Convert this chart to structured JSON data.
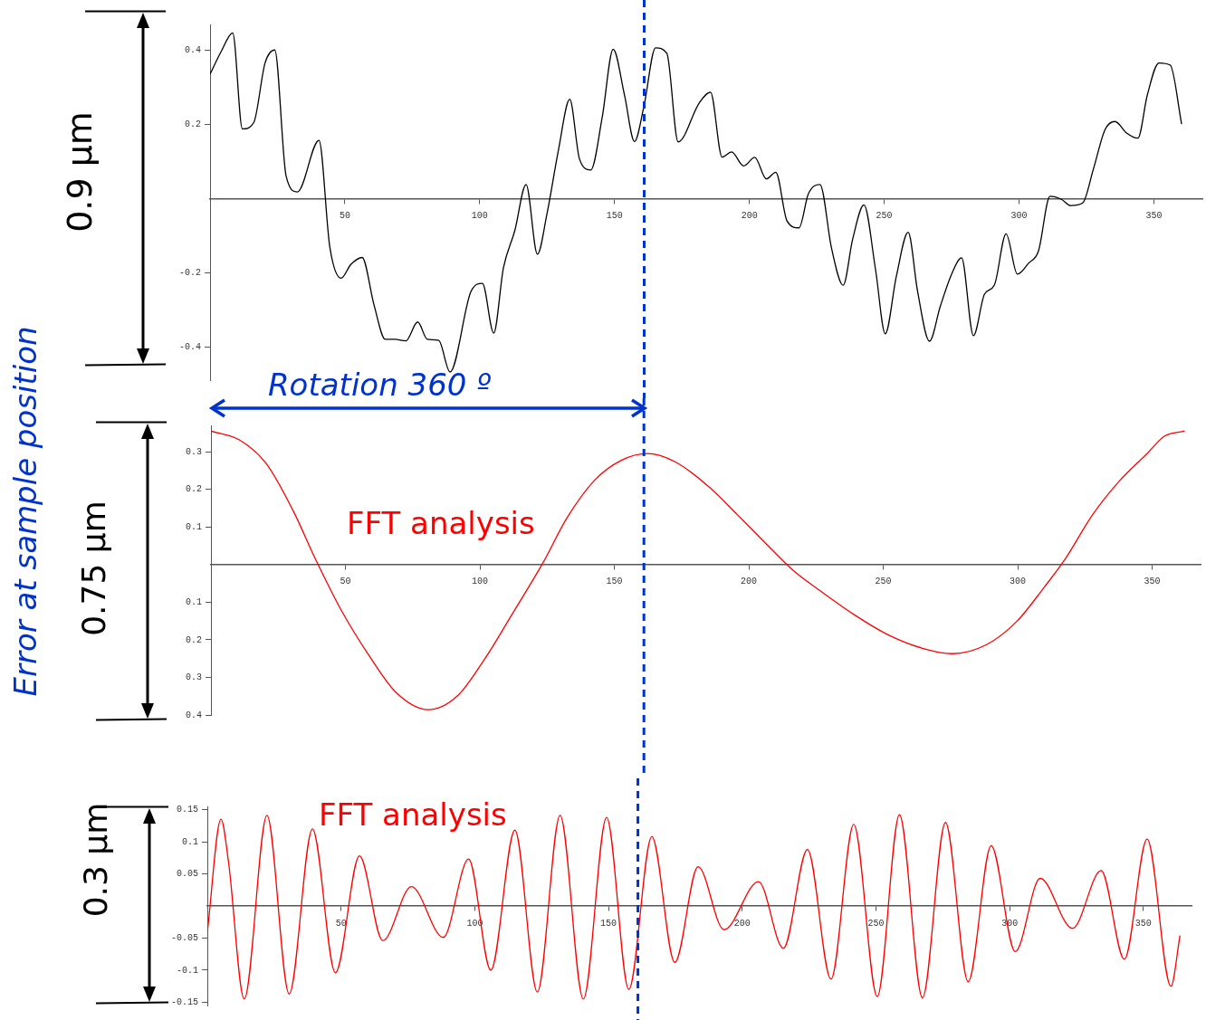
{
  "chart_data": [
    {
      "type": "line",
      "ylabel": "Error at sample position",
      "annotations": [
        "0.9 µm",
        "Rotation 360 º"
      ],
      "marker": "none",
      "xlim": [
        0,
        368
      ],
      "xticks": [
        50,
        100,
        150,
        200,
        250,
        300,
        350
      ],
      "ylim": [
        -0.49,
        0.47
      ],
      "yticks": [
        {
          "value": 0.4,
          "label": "0.4"
        },
        {
          "value": 0.2,
          "label": "0.2"
        },
        {
          "value": -0.2,
          "label": "-0.2"
        },
        {
          "value": -0.4,
          "label": "-0.4"
        }
      ],
      "ref_lines": [
        {
          "axis": "x",
          "value": 161,
          "label": null,
          "color": "#0033cc",
          "line_style": "dashed"
        }
      ],
      "x": [
        0,
        4.2,
        8.4,
        12,
        16.2,
        20.4,
        24,
        28.2,
        32.4,
        40.4,
        44.4,
        48.6,
        52.2,
        56.4,
        60.8,
        65,
        68.6,
        72.6,
        77,
        80.6,
        84.8,
        89,
        96.8,
        101,
        105.2,
        108.8,
        113,
        117.2,
        121.4,
        125,
        129.2,
        133.4,
        137,
        141.2,
        145.4,
        149.5,
        153.7,
        157.4,
        160.9,
        165.2,
        169.4,
        173.6,
        181.4,
        185.6,
        189.9,
        193.4,
        197.9,
        202,
        206.3,
        209.8,
        214,
        218.4,
        221.9,
        226.2,
        230.5,
        234.8,
        238.3,
        242.5,
        246.8,
        250.4,
        254.5,
        258.9,
        262.4,
        266.8,
        270.8,
        275,
        278.7,
        283.1,
        287.2,
        290.9,
        295.2,
        299.4,
        303.6,
        307.2,
        311.5,
        315.7,
        319.2,
        323.6,
        327.6,
        331.9,
        335.6,
        339.9,
        344.1,
        347.6,
        351.9,
        356.1,
        360.3
      ],
      "series": [
        {
          "color": "#000000",
          "values": [
            0.336,
            0.398,
            0.447,
            0.188,
            0.205,
            0.366,
            0.401,
            0.061,
            0.018,
            0.157,
            -0.13,
            -0.215,
            -0.178,
            -0.159,
            -0.287,
            -0.38,
            -0.38,
            -0.384,
            -0.333,
            -0.38,
            -0.383,
            -0.468,
            -0.25,
            -0.229,
            -0.363,
            -0.187,
            -0.087,
            0.038,
            -0.15,
            -0.039,
            0.131,
            0.268,
            0.107,
            0.077,
            0.218,
            0.403,
            0.279,
            0.154,
            0.249,
            0.407,
            0.392,
            0.153,
            0.258,
            0.287,
            0.112,
            0.126,
            0.088,
            0.111,
            0.053,
            0.071,
            -0.061,
            -0.079,
            0.013,
            0.038,
            -0.135,
            -0.234,
            -0.11,
            -0.017,
            -0.192,
            -0.365,
            -0.21,
            -0.091,
            -0.251,
            -0.385,
            -0.291,
            -0.204,
            -0.16,
            -0.37,
            -0.258,
            -0.233,
            -0.095,
            -0.204,
            -0.174,
            -0.142,
            0.006,
            -0.002,
            -0.019,
            -0.012,
            0.08,
            0.186,
            0.208,
            0.177,
            0.163,
            0.28,
            0.366,
            0.36,
            0.201
          ]
        }
      ]
    },
    {
      "type": "line",
      "annotations": [
        "0.75 µm",
        "FFT analysis"
      ],
      "marker": "none",
      "xlim": [
        0,
        368
      ],
      "xticks": [
        50,
        100,
        150,
        200,
        250,
        300,
        350
      ],
      "ylim": [
        -0.4,
        0.37
      ],
      "yticks": [
        {
          "value": 0.3,
          "label": "0.3"
        },
        {
          "value": 0.2,
          "label": "0.2"
        },
        {
          "value": 0.1,
          "label": "0.1"
        },
        {
          "value": -0.1,
          "label": "0.1"
        },
        {
          "value": -0.2,
          "label": "0.2"
        },
        {
          "value": -0.3,
          "label": "0.3"
        },
        {
          "value": -0.4,
          "label": "0.4"
        }
      ],
      "ref_lines": [
        {
          "axis": "x",
          "value": 161,
          "label": null,
          "color": "#0033cc",
          "line_style": "dashed"
        }
      ],
      "x": [
        0,
        10.4,
        20.6,
        30.7,
        38.9,
        48.5,
        58.7,
        68.8,
        80.8,
        91.7,
        101.9,
        112,
        123.5,
        132.3,
        142.5,
        152.6,
        162.3,
        172.9,
        185.6,
        195.8,
        205.9,
        216.1,
        226.2,
        238.9,
        251.6,
        264.3,
        275.7,
        288.4,
        299.8,
        310,
        317.6,
        327.8,
        337.9,
        348.1,
        354.5,
        362.1
      ],
      "series": [
        {
          "color": "#ff0000",
          "values": [
            0.355,
            0.332,
            0.268,
            0.141,
            0.014,
            -0.122,
            -0.241,
            -0.34,
            -0.386,
            -0.349,
            -0.25,
            -0.132,
            0.005,
            0.123,
            0.223,
            0.277,
            0.295,
            0.272,
            0.204,
            0.132,
            0.059,
            -0.013,
            -0.068,
            -0.132,
            -0.186,
            -0.222,
            -0.237,
            -0.213,
            -0.15,
            -0.059,
            0.014,
            0.132,
            0.223,
            0.295,
            0.341,
            0.355
          ]
        }
      ]
    },
    {
      "type": "line",
      "annotations": [
        "0.3 µm",
        "FFT analysis"
      ],
      "marker": "none",
      "xlim": [
        0,
        368
      ],
      "xticks": [
        50,
        100,
        150,
        200,
        250,
        300,
        350
      ],
      "ylim": [
        -0.155,
        0.155
      ],
      "yticks": [
        {
          "value": 0.15,
          "label": "0.15"
        },
        {
          "value": 0.1,
          "label": "0.1"
        },
        {
          "value": 0.05,
          "label": "0.05"
        },
        {
          "value": -0.05,
          "label": "-0.05"
        },
        {
          "value": -0.1,
          "label": "-0.1"
        },
        {
          "value": -0.15,
          "label": "-0.15"
        }
      ],
      "ref_lines": [
        {
          "axis": "x",
          "value": 161,
          "label": null,
          "color": "#0033cc",
          "line_style": "dashed"
        }
      ],
      "x": [
        0,
        5.1,
        7.9,
        13.8,
        22.3,
        30.6,
        39.3,
        47.9,
        56.9,
        65.6,
        76.3,
        88.2,
        97.7,
        106,
        115,
        123.4,
        131.9,
        140.6,
        149.3,
        157.6,
        166.2,
        174.8,
        183.5,
        193.2,
        206.1,
        215.4,
        224.4,
        233.2,
        241.7,
        250.5,
        258.8,
        267.4,
        276,
        284.5,
        293.1,
        302.1,
        311.4,
        323.5,
        334.2,
        342.9,
        351.4,
        360.3,
        363.7
      ],
      "series": [
        {
          "color": "#ff0000",
          "values": [
            -0.041,
            0.135,
            0.069,
            -0.145,
            0.141,
            -0.137,
            0.12,
            -0.104,
            0.078,
            -0.054,
            0.03,
            -0.049,
            0.073,
            -0.1,
            0.118,
            -0.134,
            0.141,
            -0.145,
            0.138,
            -0.13,
            0.108,
            -0.088,
            0.061,
            -0.037,
            0.038,
            -0.066,
            0.088,
            -0.114,
            0.127,
            -0.141,
            0.142,
            -0.143,
            0.13,
            -0.118,
            0.094,
            -0.071,
            0.043,
            -0.035,
            0.055,
            -0.083,
            0.104,
            -0.125,
            -0.046
          ]
        }
      ]
    }
  ]
}
